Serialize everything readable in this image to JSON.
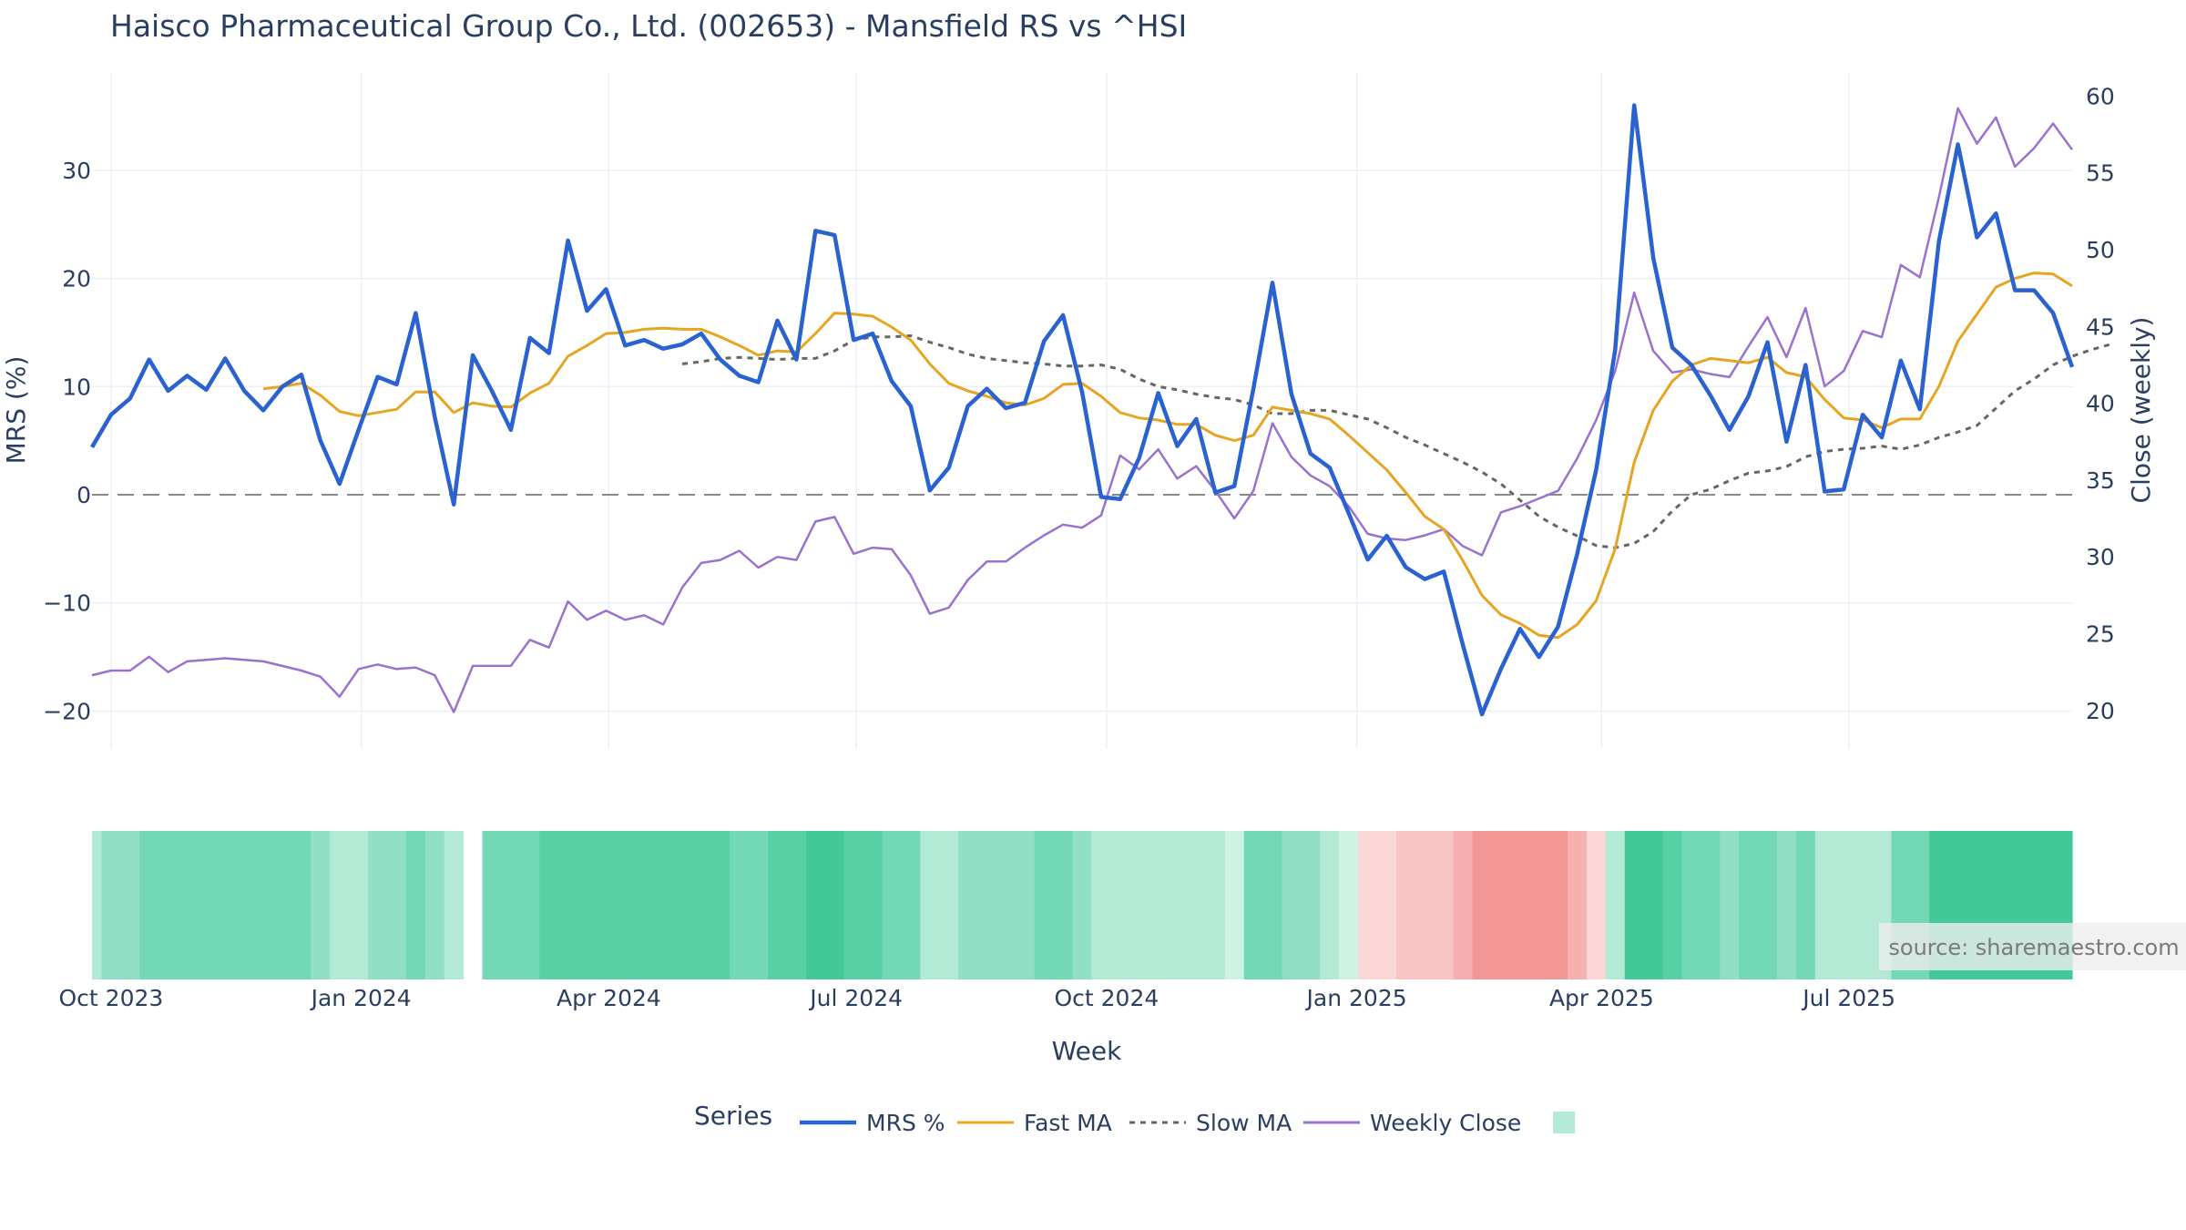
{
  "chart_data": {
    "type": "line",
    "title": "Haisco Pharmaceutical Group Co., Ltd. (002653) - Mansfield RS vs ^HSI",
    "xlabel": "Week",
    "ylabel_left": "MRS (%)",
    "ylabel_right": "Close (weekly)",
    "x_range": [
      "2023-09-24",
      "2025-09-21"
    ],
    "ylim_left": [
      -23.5,
      39
    ],
    "ylim_right": [
      17.5,
      61.5
    ],
    "x_ticks": [
      {
        "date": "2023-10-01",
        "label": "Oct 2023"
      },
      {
        "date": "2024-01-01",
        "label": "Jan 2024"
      },
      {
        "date": "2024-04-01",
        "label": "Apr 2024"
      },
      {
        "date": "2024-07-01",
        "label": "Jul 2024"
      },
      {
        "date": "2024-10-01",
        "label": "Oct 2024"
      },
      {
        "date": "2025-01-01",
        "label": "Jan 2025"
      },
      {
        "date": "2025-04-01",
        "label": "Apr 2025"
      },
      {
        "date": "2025-07-01",
        "label": "Jul 2025"
      }
    ],
    "y_ticks_left": [
      "−20",
      "−10",
      "0",
      "10",
      "20",
      "30"
    ],
    "y_ticks_right": [
      "20",
      "25",
      "30",
      "35",
      "40",
      "45",
      "50",
      "55",
      "60"
    ],
    "start_date": "2023-09-24",
    "week_step_days": 7,
    "series": [
      {
        "name": "MRS %",
        "axis": "left",
        "color": "#2b62d1",
        "dash": "solid",
        "values": [
          4.4,
          7.4,
          8.9,
          12.5,
          9.6,
          11.0,
          9.7,
          12.6,
          9.6,
          7.8,
          10.0,
          11.1,
          5.0,
          1.0,
          6.0,
          10.9,
          10.2,
          16.8,
          7.2,
          -0.9,
          12.9,
          9.6,
          6.0,
          14.5,
          13.1,
          23.5,
          17.0,
          19.0,
          13.8,
          14.3,
          13.5,
          13.9,
          14.9,
          12.5,
          11.0,
          10.4,
          16.1,
          12.5,
          24.4,
          24.0,
          14.3,
          14.9,
          10.5,
          8.2,
          0.4,
          2.5,
          8.2,
          9.8,
          8.0,
          8.5,
          14.2,
          16.6,
          9.5,
          -0.2,
          -0.4,
          3.4,
          9.4,
          4.5,
          7.0,
          0.2,
          0.8,
          9.8,
          19.6,
          9.3,
          3.8,
          2.5,
          -1.7,
          -6.0,
          -3.8,
          -6.7,
          -7.8,
          -7.1,
          -13.9,
          -20.3,
          -16.1,
          -12.4,
          -15.0,
          -12.2,
          -5.5,
          2.3,
          13.4,
          36.0,
          21.9,
          13.6,
          12.0,
          9.2,
          6.0,
          9.1,
          14.1,
          4.9,
          12.0,
          0.3,
          0.5,
          7.4,
          5.3,
          12.4,
          7.9,
          23.4,
          32.4,
          23.8,
          26.0,
          18.9,
          18.9,
          16.8,
          11.8
        ]
      },
      {
        "name": "Fast MA",
        "axis": "left",
        "color": "#e6a522",
        "dash": "solid",
        "start_index": 9,
        "values": [
          9.8,
          10.0,
          10.3,
          9.2,
          7.7,
          7.3,
          7.6,
          7.9,
          9.5,
          9.5,
          7.6,
          8.5,
          8.2,
          8.1,
          9.4,
          10.3,
          12.8,
          13.8,
          14.9,
          15.0,
          15.3,
          15.4,
          15.3,
          15.3,
          14.6,
          13.8,
          12.9,
          13.3,
          13.2,
          14.9,
          16.8,
          16.7,
          16.5,
          15.5,
          14.3,
          12.1,
          10.3,
          9.6,
          9.1,
          8.5,
          8.3,
          8.9,
          10.2,
          10.3,
          9.1,
          7.6,
          7.1,
          6.9,
          6.5,
          6.5,
          5.5,
          5.0,
          5.5,
          8.1,
          7.8,
          7.5,
          7.0,
          5.5,
          3.9,
          2.3,
          0.2,
          -2.0,
          -3.2,
          -6.1,
          -9.3,
          -11.1,
          -11.9,
          -13.0,
          -13.2,
          -12.0,
          -9.8,
          -5.0,
          3.0,
          7.8,
          10.5,
          12.0,
          12.6,
          12.4,
          12.2,
          12.7,
          11.3,
          10.9,
          8.8,
          7.1,
          6.9,
          6.2,
          7.0,
          7.0,
          10.0,
          14.2,
          16.7,
          19.2,
          20.0,
          20.5,
          20.4,
          19.3
        ]
      },
      {
        "name": "Slow MA",
        "axis": "left",
        "color": "#666666",
        "dash": "dash",
        "start_index": 31,
        "values": [
          12.1,
          12.3,
          12.6,
          12.7,
          12.6,
          12.5,
          12.6,
          12.6,
          13.3,
          14.3,
          14.6,
          14.6,
          14.7,
          14.1,
          13.6,
          13.0,
          12.6,
          12.4,
          12.2,
          12.1,
          11.9,
          11.9,
          12.0,
          11.6,
          10.7,
          10.0,
          9.7,
          9.3,
          9.0,
          8.8,
          8.3,
          7.5,
          7.5,
          7.8,
          7.8,
          7.4,
          7.0,
          6.2,
          5.3,
          4.6,
          3.8,
          3.0,
          2.1,
          1.0,
          -0.5,
          -2.0,
          -3.0,
          -3.8,
          -4.7,
          -4.9,
          -4.5,
          -3.4,
          -1.5,
          0.0,
          0.5,
          1.3,
          2.0,
          2.2,
          2.6,
          3.5,
          4.0,
          4.2,
          4.3,
          4.5,
          4.2,
          4.6,
          5.3,
          5.8,
          6.4,
          8.0,
          9.6,
          10.7,
          12.0,
          12.8,
          13.4,
          13.9
        ]
      },
      {
        "name": "Weekly Close",
        "axis": "right",
        "color": "#9b72cf",
        "dash": "solid",
        "values": [
          22.3,
          22.6,
          22.6,
          23.5,
          22.5,
          23.2,
          23.3,
          23.4,
          23.3,
          23.2,
          22.9,
          22.6,
          22.2,
          20.9,
          22.7,
          23.0,
          22.7,
          22.8,
          22.3,
          19.9,
          22.9,
          22.9,
          22.9,
          24.6,
          24.1,
          27.1,
          25.9,
          26.5,
          25.9,
          26.2,
          25.6,
          28.0,
          29.6,
          29.8,
          30.4,
          29.3,
          30.0,
          29.8,
          32.3,
          32.6,
          30.2,
          30.6,
          30.5,
          28.8,
          26.3,
          26.7,
          28.5,
          29.7,
          29.7,
          30.6,
          31.4,
          32.1,
          31.9,
          32.7,
          36.6,
          35.7,
          37.0,
          35.1,
          35.9,
          34.3,
          32.5,
          34.3,
          38.7,
          36.5,
          35.3,
          34.6,
          33.3,
          31.5,
          31.2,
          31.1,
          31.4,
          31.8,
          30.7,
          30.1,
          32.9,
          33.3,
          33.8,
          34.3,
          36.4,
          38.9,
          42.1,
          47.2,
          43.4,
          42.0,
          42.2,
          41.9,
          41.7,
          43.7,
          45.6,
          43.0,
          46.2,
          41.1,
          42.1,
          44.7,
          44.3,
          49.0,
          48.2,
          53.4,
          59.2,
          56.9,
          58.6,
          55.4,
          56.6,
          58.2,
          56.5
        ]
      }
    ],
    "heatmap": {
      "description_levels": "signed strength per week",
      "values": [
        1,
        2,
        2,
        3,
        3,
        3,
        3,
        3,
        3,
        3,
        3,
        3,
        2,
        1,
        1,
        2,
        2,
        3,
        2,
        1,
        null,
        3,
        3,
        3,
        4,
        4,
        4,
        4,
        4,
        4,
        4,
        4,
        4,
        4,
        3,
        3,
        4,
        4,
        5,
        5,
        4,
        4,
        3,
        3,
        1,
        1,
        2,
        2,
        2,
        2,
        3,
        3,
        2,
        1,
        1,
        1,
        1,
        1,
        1,
        1,
        0,
        3,
        3,
        2,
        2,
        1,
        0,
        -1,
        -1,
        -2,
        -2,
        -2,
        -3,
        -4,
        -4,
        -4,
        -4,
        -4,
        -3,
        -1,
        1,
        5,
        5,
        4,
        3,
        3,
        2,
        3,
        3,
        2,
        3,
        1,
        1,
        1,
        1,
        3,
        3,
        5,
        5,
        5,
        5,
        5,
        5,
        5,
        5,
        4
      ],
      "positive_colors": [
        "#d0f2e5",
        "#b3ead6",
        "#91e0c5",
        "#73d8b5",
        "#58d0a6",
        "#43c997",
        "#28c18a"
      ],
      "negative_colors": [
        "#fbd6d6",
        "#f9c4c4",
        "#f6b0b0",
        "#f39696",
        "#f07d7d"
      ]
    },
    "legend": {
      "title": "Series",
      "placement": "bottom-center",
      "items": [
        "MRS %",
        "Fast MA",
        "Slow MA",
        "Weekly Close"
      ],
      "swatch_color": "#b3ead6"
    },
    "zero_line": {
      "value": 0,
      "color": "#8a8a8a",
      "dash": "dash"
    },
    "grid": true,
    "source": "source: sharemaestro.com"
  }
}
